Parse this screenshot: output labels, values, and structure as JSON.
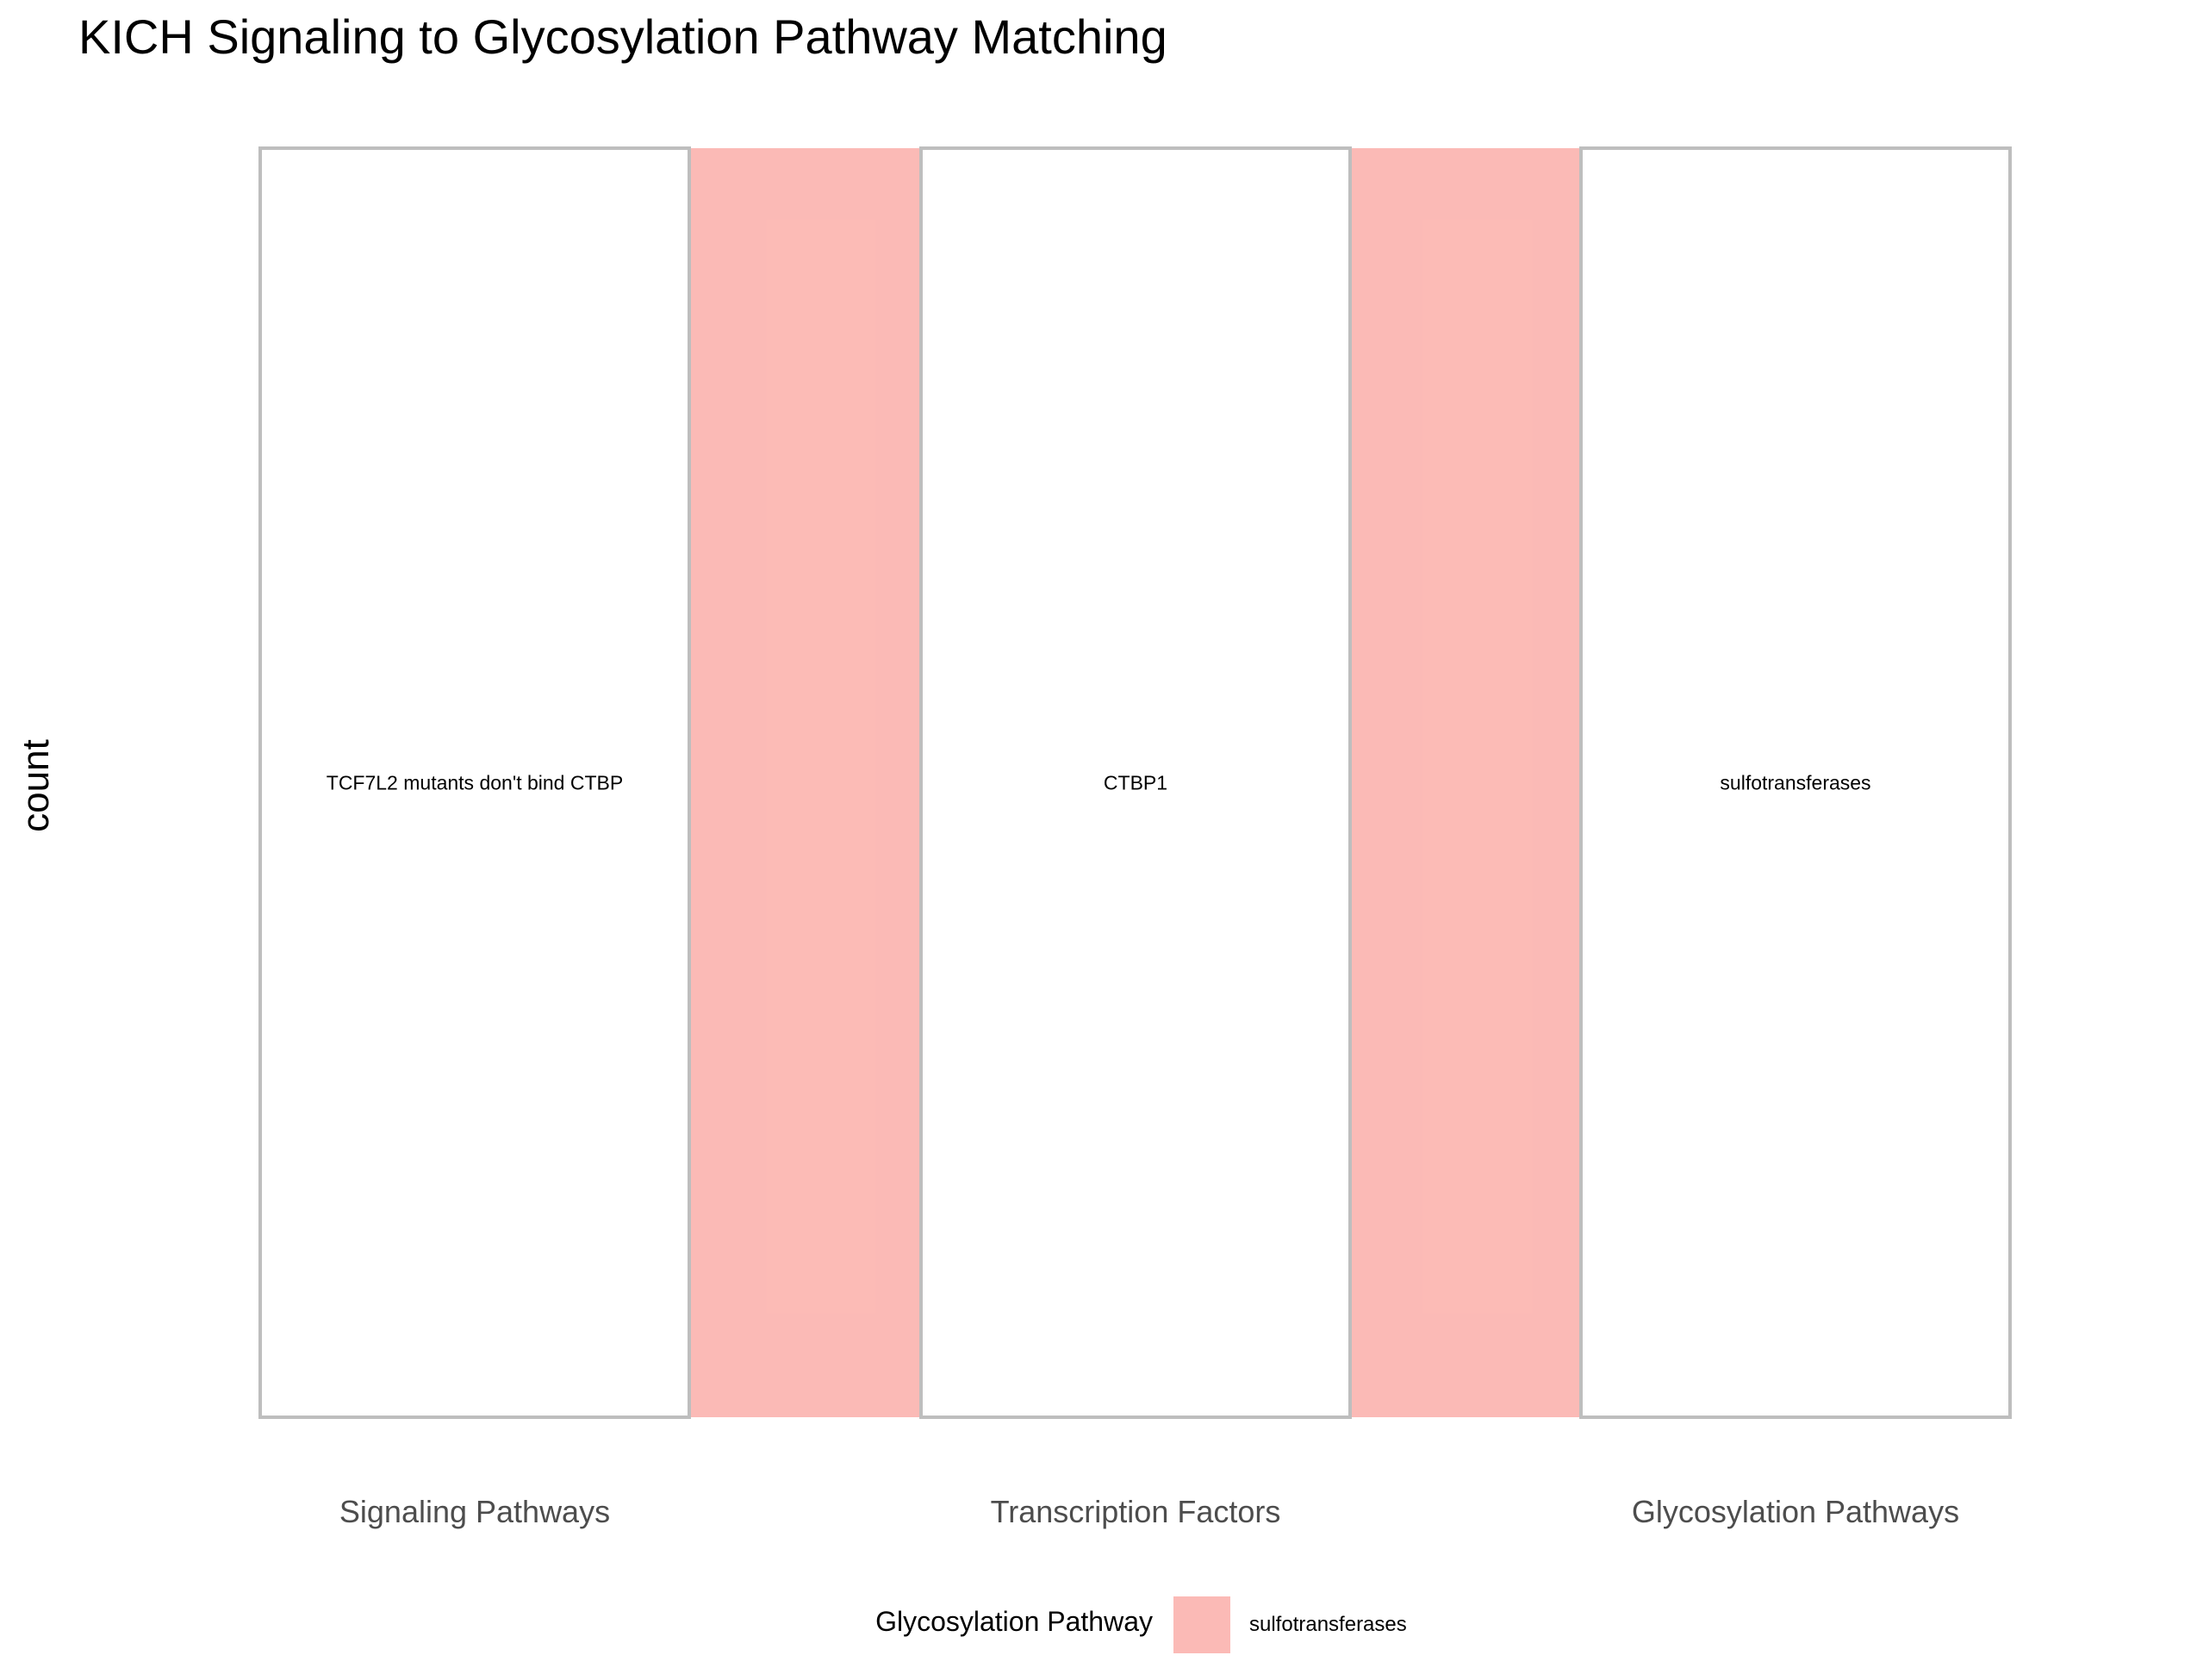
{
  "chart_data": {
    "type": "alluvial",
    "title": "KICH Signaling to Glycosylation Pathway Matching",
    "xlabel": "",
    "ylabel": "count",
    "axes": [
      "Signaling Pathways",
      "Transcription Factors",
      "Glycosylation Pathways"
    ],
    "strata": [
      {
        "axis": "Signaling Pathways",
        "label": "TCF7L2 mutants don't bind CTBP",
        "count": 1
      },
      {
        "axis": "Transcription Factors",
        "label": "CTBP1",
        "count": 1
      },
      {
        "axis": "Glycosylation Pathways",
        "label": "sulfotransferases",
        "count": 1
      }
    ],
    "flows": [
      {
        "path": [
          "TCF7L2 mutants don't bind CTBP",
          "CTBP1",
          "sulfotransferases"
        ],
        "count": 1,
        "fill_group": "sulfotransferases"
      }
    ],
    "legend": {
      "title": "Glycosylation Pathway",
      "position": "bottom",
      "entries": [
        {
          "label": "sulfotransferases",
          "color": "#F8766D"
        }
      ]
    },
    "flow_alpha": 0.5,
    "stratum_border_color": "#BEBEBE",
    "grid": false
  }
}
